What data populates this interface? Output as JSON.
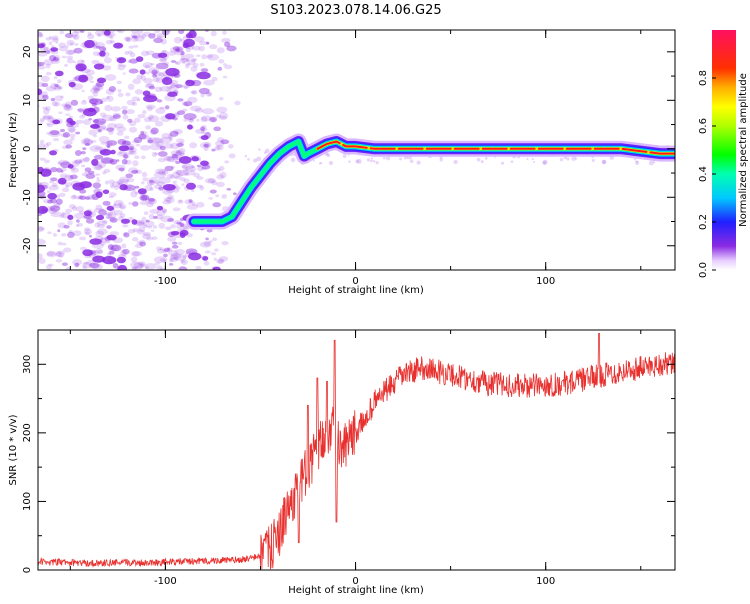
{
  "title": "S103.2023.078.14.06.G25",
  "colors": {
    "snr_line": "#e8302e",
    "noise": "#8a2be2",
    "track_core": "#ff1a1a",
    "axis": "#000000"
  },
  "chart_data": [
    {
      "type": "heatmap",
      "title": "",
      "xlabel": "Height of straight line (km)",
      "ylabel": "Frequency (Hz)",
      "xlim": [
        -167,
        168
      ],
      "ylim": [
        -25,
        24.5
      ],
      "xticks": [
        -100,
        0,
        100
      ],
      "yticks": [
        -20,
        -10,
        0,
        10,
        20
      ],
      "grid": false,
      "colorbar": {
        "label": "Normalized spectral amplitude",
        "range": [
          0,
          1
        ],
        "ticks": [
          0.0,
          0.2,
          0.4,
          0.6,
          0.8
        ],
        "colormap": "gist_rainbow (violet-blue-cyan-green-yellow-red-magenta)"
      },
      "track": {
        "x": [
          -85,
          -70,
          -65,
          -55,
          -45,
          -40,
          -35,
          -30,
          -27,
          -25,
          -20,
          -15,
          -10,
          -5,
          0,
          10,
          30,
          60,
          100,
          140,
          160,
          168
        ],
        "y": [
          -15,
          -15,
          -14,
          -8,
          -3,
          -1,
          0.5,
          1.5,
          -1.5,
          -1,
          0,
          1,
          1.5,
          0.5,
          0.5,
          0,
          0,
          0,
          0,
          0,
          -1,
          -1
        ]
      },
      "noise_region_x": [
        -167,
        -60
      ]
    },
    {
      "type": "line",
      "title": "",
      "xlabel": "Height of straight line (km)",
      "ylabel": "SNR (10 * v/v)",
      "xlim": [
        -167,
        168
      ],
      "ylim": [
        0,
        350
      ],
      "xticks": [
        -100,
        0,
        100
      ],
      "yticks": [
        0,
        100,
        200,
        300
      ],
      "grid": false,
      "series": [
        {
          "x": [
            -167,
            -140,
            -110,
            -80,
            -60,
            -50,
            -45,
            -40,
            -35,
            -30,
            -25,
            -20,
            -15,
            -12,
            -10,
            -8,
            -5,
            0,
            5,
            10,
            15,
            20,
            25,
            30,
            35,
            40,
            50,
            60,
            70,
            80,
            90,
            100,
            110,
            120,
            130,
            140,
            150,
            160,
            168
          ],
          "values": [
            12,
            10,
            11,
            13,
            15,
            20,
            30,
            55,
            90,
            120,
            150,
            175,
            200,
            210,
            190,
            175,
            180,
            200,
            220,
            245,
            260,
            270,
            285,
            290,
            295,
            292,
            285,
            278,
            272,
            270,
            268,
            270,
            272,
            278,
            285,
            290,
            295,
            300,
            300
          ],
          "spikes": [
            [
              -25,
              240
            ],
            [
              -20,
              280
            ],
            [
              -15,
              275
            ],
            [
              -11,
              335
            ],
            [
              -10,
              315
            ],
            [
              128,
              345
            ],
            [
              -30,
              40
            ],
            [
              -10,
              70
            ]
          ]
        }
      ]
    }
  ]
}
